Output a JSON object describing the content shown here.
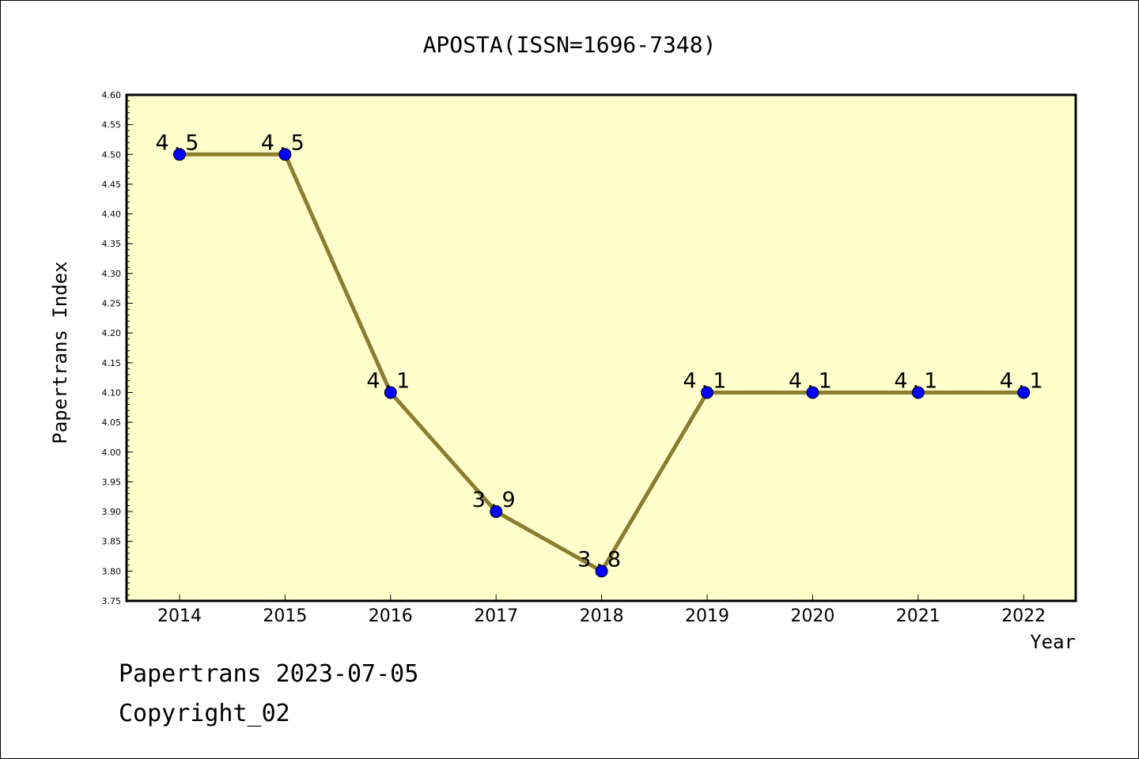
{
  "chart_data": {
    "type": "line",
    "title": "APOSTA(ISSN=1696-7348)",
    "xlabel": "Year",
    "ylabel": "Papertrans Index",
    "categories": [
      "2014",
      "2015",
      "2016",
      "2017",
      "2018",
      "2019",
      "2020",
      "2021",
      "2022"
    ],
    "values": [
      4.5,
      4.5,
      4.1,
      3.9,
      3.8,
      4.1,
      4.1,
      4.1,
      4.1
    ],
    "data_labels": [
      "4.5",
      "4.5",
      "4.1",
      "3.9",
      "3.8",
      "4.1",
      "4.1",
      "4.1",
      "4.1"
    ],
    "ylim": [
      3.75,
      4.6
    ],
    "yticks": [
      "3.75",
      "3.80",
      "3.85",
      "3.90",
      "3.95",
      "4.00",
      "4.05",
      "4.10",
      "4.15",
      "4.20",
      "4.25",
      "4.30",
      "4.35",
      "4.40",
      "4.45",
      "4.50",
      "4.55",
      "4.60"
    ],
    "grid": false,
    "colors": {
      "plot_background": "#ffffcc",
      "line": "#8b7d2f",
      "marker": "#0000ff"
    }
  },
  "footer": {
    "date_line": "Papertrans 2023-07-05",
    "copyright": "Copyright_02"
  }
}
